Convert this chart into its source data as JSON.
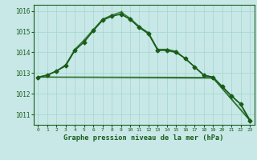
{
  "title": "Graphe pression niveau de la mer (hPa)",
  "background_color": "#c8e8e8",
  "grid_color": "#a8d8d0",
  "xlim": [
    -0.5,
    23.5
  ],
  "ylim": [
    1010.5,
    1016.3
  ],
  "yticks": [
    1011,
    1012,
    1013,
    1014,
    1015,
    1016
  ],
  "xticks": [
    0,
    1,
    2,
    3,
    4,
    5,
    6,
    7,
    8,
    9,
    10,
    11,
    12,
    13,
    14,
    15,
    16,
    17,
    18,
    19,
    20,
    21,
    22,
    23
  ],
  "series_main": {
    "x": [
      0,
      1,
      2,
      3,
      4,
      5,
      6,
      7,
      8,
      9,
      10,
      11,
      12,
      13,
      14,
      15,
      16,
      17,
      18,
      19,
      20,
      21,
      22,
      23
    ],
    "y": [
      1012.8,
      1012.9,
      1013.1,
      1013.35,
      1014.1,
      1014.5,
      1015.05,
      1015.55,
      1015.75,
      1015.85,
      1015.6,
      1015.2,
      1014.9,
      1014.1,
      1014.1,
      1014.0,
      1013.7,
      1013.3,
      1012.9,
      1012.8,
      1012.35,
      1011.9,
      1011.5,
      1010.7
    ],
    "color": "#1a5c1a",
    "marker": "D",
    "markersize": 2.5,
    "linewidth": 1.2
  },
  "series_plus": {
    "x": [
      0,
      1,
      2,
      3,
      4,
      5,
      6,
      7,
      8,
      9,
      10,
      11,
      12,
      13,
      14,
      15,
      16,
      17,
      18,
      19,
      20,
      21,
      22,
      23
    ],
    "y": [
      1012.8,
      1012.9,
      1013.1,
      1013.4,
      1014.15,
      1014.6,
      1015.1,
      1015.6,
      1015.8,
      1015.95,
      1015.65,
      1015.25,
      1014.95,
      1014.15,
      1014.15,
      1014.05,
      1013.7,
      1013.3,
      1012.9,
      1012.8,
      1012.35,
      1011.9,
      1011.5,
      1010.75
    ],
    "color": "#2d7a2d",
    "marker": "P",
    "markersize": 3.5,
    "linewidth": 1.0
  },
  "line_flat1": {
    "x": [
      0,
      19,
      23
    ],
    "y": [
      1012.8,
      1012.8,
      1010.7
    ],
    "color": "#1a5c1a",
    "linewidth": 0.8
  },
  "line_flat2": {
    "x": [
      0,
      19,
      23
    ],
    "y": [
      1012.8,
      1012.85,
      1010.75
    ],
    "color": "#2d7a2d",
    "linewidth": 0.7
  },
  "line_diag1": {
    "x": [
      0,
      23
    ],
    "y": [
      1012.8,
      1012.8
    ],
    "color": "#1a5c1a",
    "linewidth": 0.7
  },
  "line_diag2": {
    "x": [
      0,
      23
    ],
    "y": [
      1012.8,
      1012.8
    ],
    "color": "#2d7a2d",
    "linewidth": 0.6
  }
}
